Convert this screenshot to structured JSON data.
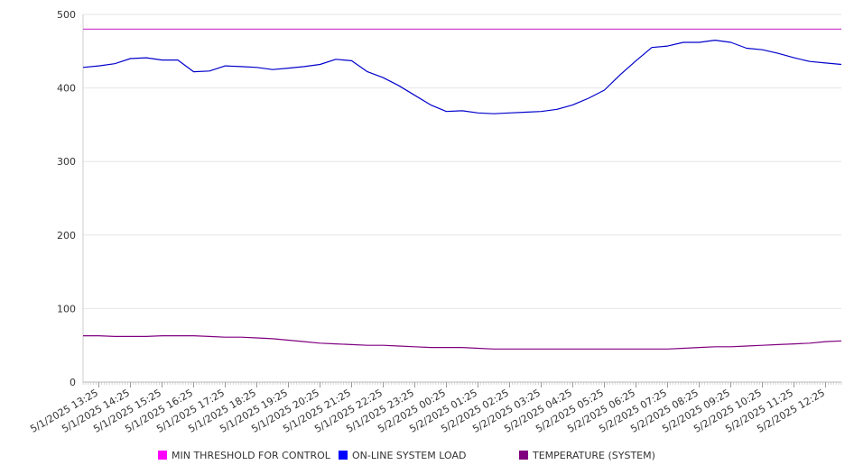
{
  "chart_data": {
    "type": "line",
    "title": "",
    "xlabel": "",
    "ylabel": "",
    "ylim": [
      0,
      500
    ],
    "y_ticks": [
      0,
      100,
      200,
      300,
      400,
      500
    ],
    "grid": "horizontal",
    "legend_position": "bottom",
    "x_tick_labels": [
      "5/1/2025 13:25",
      "5/1/2025 14:25",
      "5/1/2025 15:25",
      "5/1/2025 16:25",
      "5/1/2025 17:25",
      "5/1/2025 18:25",
      "5/1/2025 19:25",
      "5/1/2025 20:25",
      "5/1/2025 21:25",
      "5/1/2025 22:25",
      "5/1/2025 23:25",
      "5/2/2025 00:25",
      "5/2/2025 01:25",
      "5/2/2025 02:25",
      "5/2/2025 03:25",
      "5/2/2025 04:25",
      "5/2/2025 05:25",
      "5/2/2025 06:25",
      "5/2/2025 07:25",
      "5/2/2025 08:25",
      "5/2/2025 09:25",
      "5/2/2025 10:25",
      "5/2/2025 11:25",
      "5/2/2025 12:25"
    ],
    "x": [
      "5/1/2025 12:55",
      "5/1/2025 13:25",
      "5/1/2025 13:55",
      "5/1/2025 14:25",
      "5/1/2025 14:55",
      "5/1/2025 15:25",
      "5/1/2025 15:55",
      "5/1/2025 16:25",
      "5/1/2025 16:55",
      "5/1/2025 17:25",
      "5/1/2025 17:55",
      "5/1/2025 18:25",
      "5/1/2025 18:55",
      "5/1/2025 19:25",
      "5/1/2025 19:55",
      "5/1/2025 20:25",
      "5/1/2025 20:55",
      "5/1/2025 21:25",
      "5/1/2025 21:55",
      "5/1/2025 22:25",
      "5/1/2025 22:55",
      "5/1/2025 23:25",
      "5/1/2025 23:55",
      "5/2/2025 00:25",
      "5/2/2025 00:55",
      "5/2/2025 01:25",
      "5/2/2025 01:55",
      "5/2/2025 02:25",
      "5/2/2025 02:55",
      "5/2/2025 03:25",
      "5/2/2025 03:55",
      "5/2/2025 04:25",
      "5/2/2025 04:55",
      "5/2/2025 05:25",
      "5/2/2025 05:55",
      "5/2/2025 06:25",
      "5/2/2025 06:55",
      "5/2/2025 07:25",
      "5/2/2025 07:55",
      "5/2/2025 08:25",
      "5/2/2025 08:55",
      "5/2/2025 09:25",
      "5/2/2025 09:55",
      "5/2/2025 10:25",
      "5/2/2025 10:55",
      "5/2/2025 11:25",
      "5/2/2025 11:55",
      "5/2/2025 12:25",
      "5/2/2025 12:55"
    ],
    "series": [
      {
        "name": "MIN THRESHOLD FOR CONTROL",
        "color": "#cc33cc",
        "legend_color": "#ff00ff",
        "values": [
          480,
          480,
          480,
          480,
          480,
          480,
          480,
          480,
          480,
          480,
          480,
          480,
          480,
          480,
          480,
          480,
          480,
          480,
          480,
          480,
          480,
          480,
          480,
          480,
          480,
          480,
          480,
          480,
          480,
          480,
          480,
          480,
          480,
          480,
          480,
          480,
          480,
          480,
          480,
          480,
          480,
          480,
          480,
          480,
          480,
          480,
          480,
          480,
          480
        ]
      },
      {
        "name": "ON-LINE SYSTEM LOAD",
        "color": "#0000cc",
        "legend_color": "#0000ff",
        "values": [
          428,
          430,
          433,
          440,
          441,
          438,
          438,
          422,
          423,
          430,
          429,
          428,
          425,
          427,
          429,
          432,
          439,
          437,
          422,
          414,
          403,
          390,
          377,
          368,
          369,
          366,
          365,
          366,
          367,
          368,
          371,
          377,
          386,
          397,
          418,
          437,
          455,
          457,
          462,
          462,
          465,
          462,
          454,
          452,
          447,
          441,
          436,
          434,
          432
        ]
      },
      {
        "name": "TEMPERATURE (SYSTEM)",
        "color": "#800080",
        "legend_color": "#800080",
        "values": [
          63,
          63,
          62,
          62,
          62,
          63,
          63,
          63,
          62,
          61,
          61,
          60,
          59,
          57,
          55,
          53,
          52,
          51,
          50,
          50,
          49,
          48,
          47,
          47,
          47,
          46,
          45,
          45,
          45,
          45,
          45,
          45,
          45,
          45,
          45,
          45,
          45,
          45,
          46,
          47,
          48,
          48,
          49,
          50,
          51,
          52,
          53,
          55,
          56
        ]
      }
    ]
  }
}
